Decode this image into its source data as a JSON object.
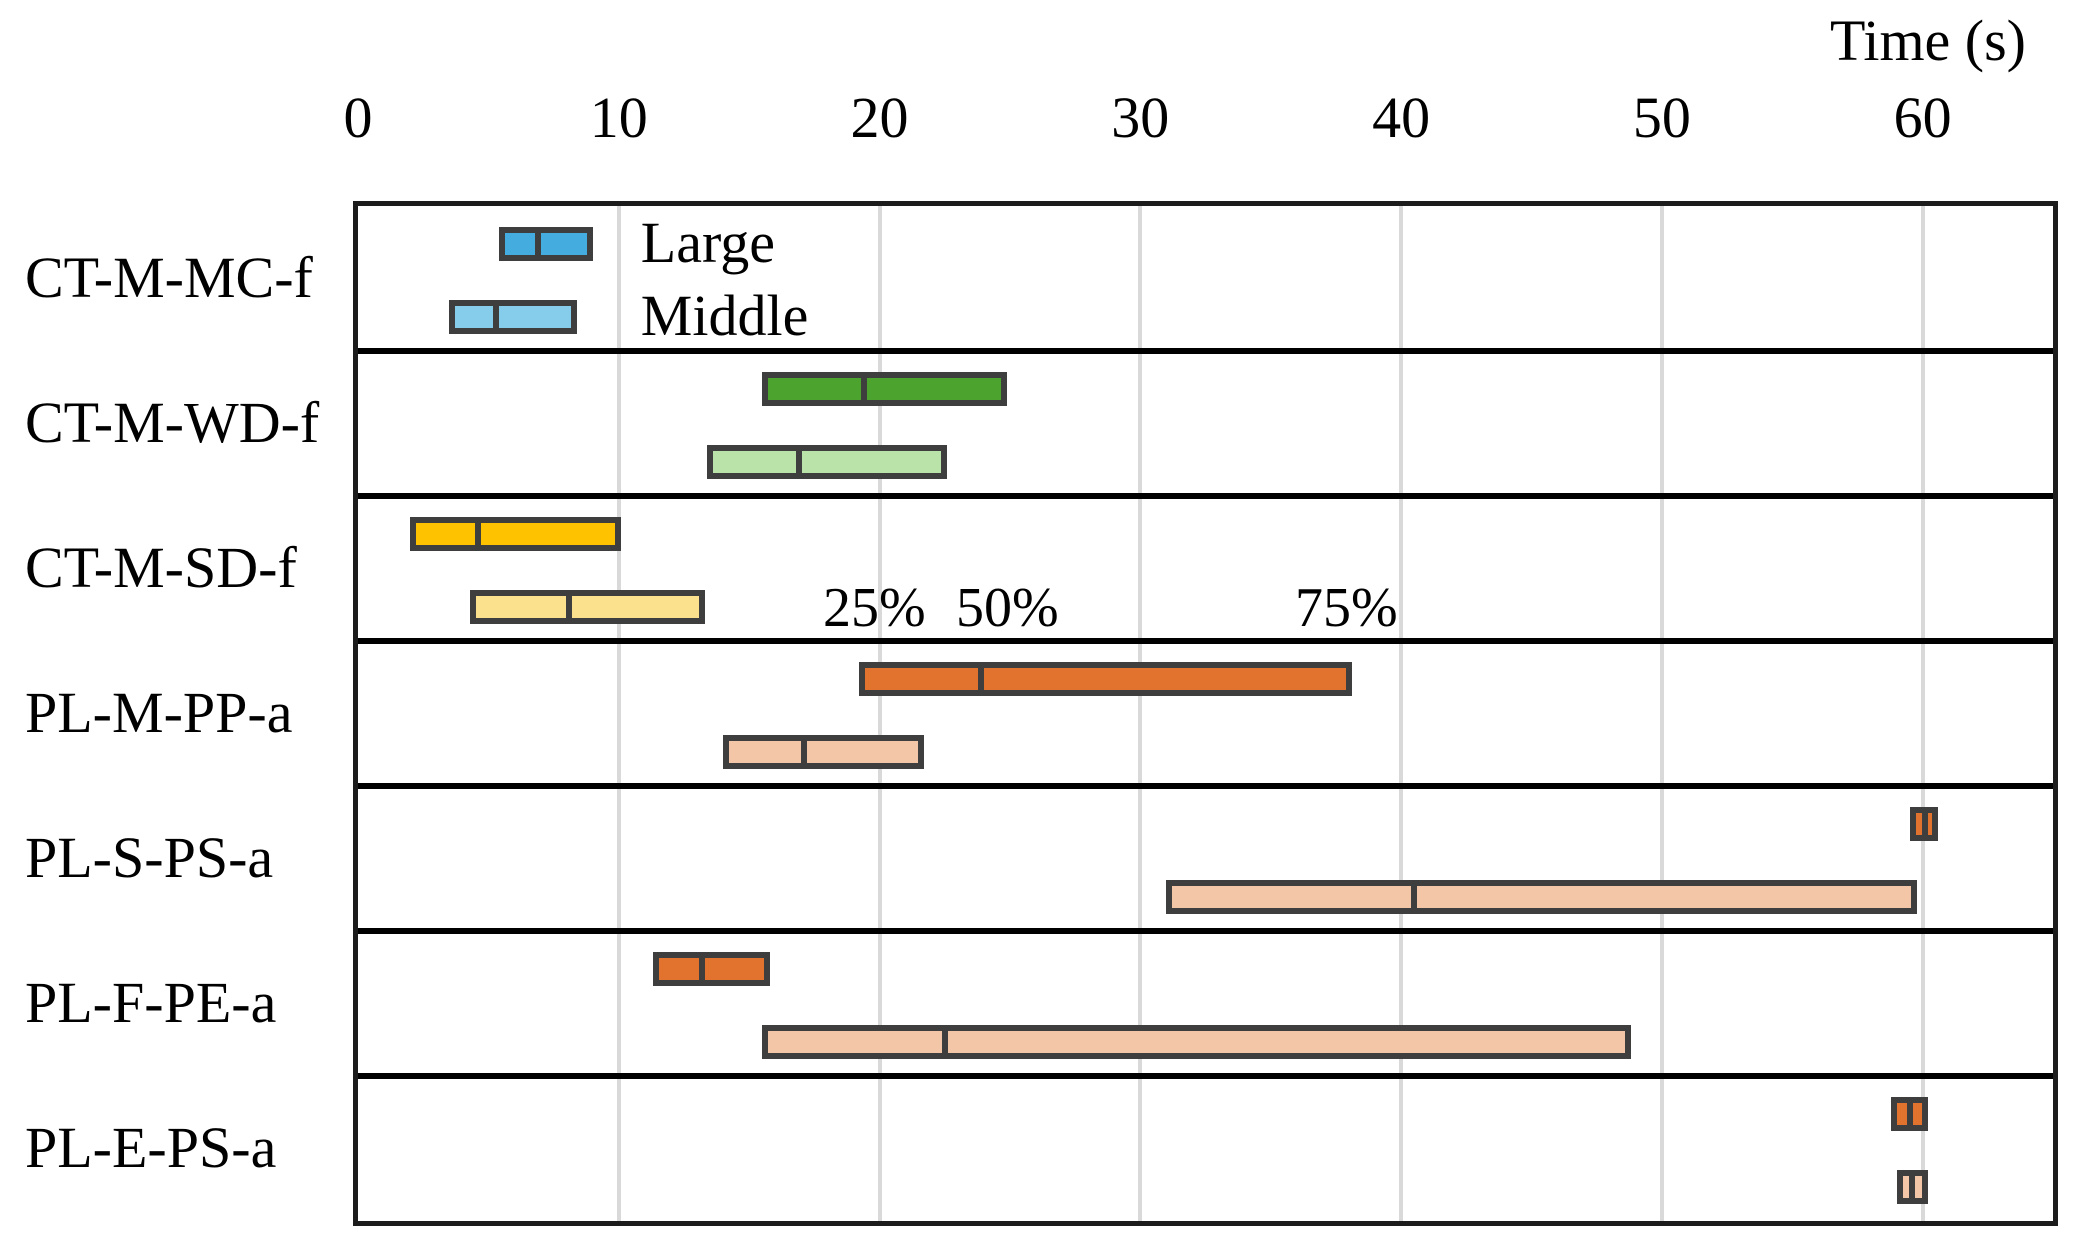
{
  "chart_data": {
    "type": "bar",
    "subtype": "horizontal-interval-quartile-bars",
    "title": "",
    "xlabel": "Time (s)",
    "ylabel": "",
    "x_ticks": [
      0,
      10,
      20,
      30,
      40,
      50,
      60
    ],
    "xlim": [
      0,
      65
    ],
    "grid": "vertical-on",
    "legend_position": "inside-top-left-row",
    "categories": [
      "CT-M-MC-f",
      "CT-M-WD-f",
      "CT-M-SD-f",
      "PL-M-PP-a",
      "PL-S-PS-a",
      "PL-F-PE-a",
      "PL-E-PS-a"
    ],
    "value_format": "[q25, q50, q75] seconds",
    "series": [
      {
        "name": "Large",
        "values": [
          [
            5.4,
            6.9,
            9.0
          ],
          [
            15.5,
            19.4,
            24.9
          ],
          [
            2.0,
            4.6,
            10.1
          ],
          [
            19.2,
            23.9,
            38.1
          ],
          [
            59.5,
            60.1,
            60.6
          ],
          [
            11.3,
            13.2,
            15.8
          ],
          [
            58.8,
            59.5,
            60.2
          ]
        ],
        "colors": [
          "#45acdf",
          "#4ca42e",
          "#fec201",
          "#e2732e",
          "#e2732e",
          "#e2732e",
          "#e2732e"
        ]
      },
      {
        "name": "Middle",
        "values": [
          [
            3.5,
            5.3,
            8.4
          ],
          [
            13.4,
            16.9,
            22.6
          ],
          [
            4.3,
            8.1,
            13.3
          ],
          [
            14.0,
            17.1,
            21.7
          ],
          [
            31.0,
            40.5,
            59.8
          ],
          [
            15.5,
            22.5,
            48.8
          ],
          [
            59.0,
            59.6,
            60.2
          ]
        ],
        "colors": [
          "#86cceb",
          "#bae3aa",
          "#fbe08d",
          "#f4c6a8",
          "#f4c6a8",
          "#f4c6a8",
          "#f4c6a8"
        ]
      }
    ],
    "annotations": [
      {
        "text": "25%",
        "t": 19.8
      },
      {
        "text": "50%",
        "t": 24.9
      },
      {
        "text": "75%",
        "t": 37.9
      }
    ],
    "annotation_row": "CT-M-SD-f",
    "style": {
      "bar_border": "#3e3e3e",
      "grid_color": "#d9d9d9",
      "frame_color": "#1c1c1c",
      "row_divider": "#000000",
      "text_color": "#000000",
      "background": "#ffffff"
    }
  }
}
